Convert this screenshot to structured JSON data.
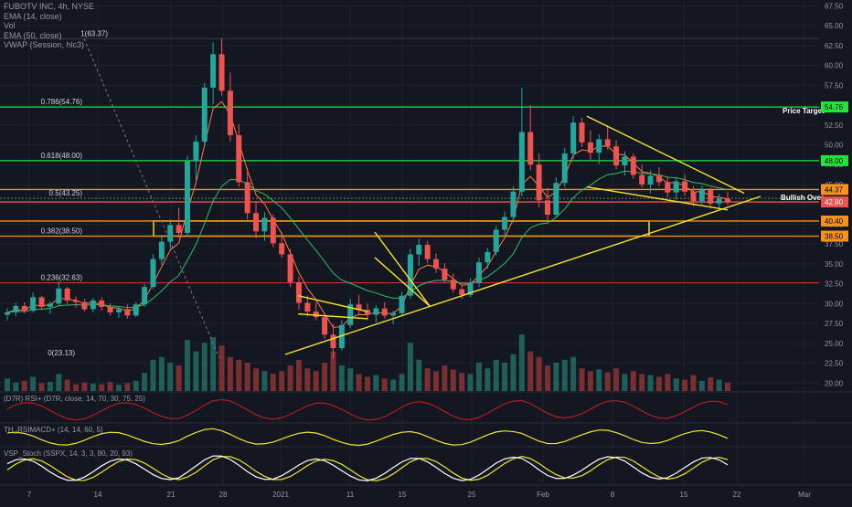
{
  "header": {
    "symbol_line": "FUBOTV INC, 4h, NYSE",
    "indicators": [
      "EMA (14, close)",
      "Vol",
      "EMA (50, close)",
      "VWAP (Session, hlc3)"
    ]
  },
  "colors": {
    "background": "#131722",
    "grid": "#1e222d",
    "up": "#26a69a",
    "down": "#ef5350",
    "trend": "#f5e425",
    "fib_green": "#21e53d",
    "fib_orange": "#f7931a",
    "fib_red": "#e0243b",
    "ema_fast": "#ff7a45",
    "ema_slow": "#2fbf5a",
    "axis_text": "#9598a1"
  },
  "annotations": {
    "price_target": "Price Target",
    "bullish_over": "Bullish Over"
  },
  "panes": {
    "rsi": "(D7R) RSI+ (D7R, close, 14, 70, 30, 75, 25)",
    "macd": "TH_RSIMACD+ (14, 14, 60, 5)",
    "stoch": "VSP_Stoch (SSPX, 14, 3, 3, 80, 20, 93)"
  },
  "chart_data": {
    "type": "candlestick",
    "title": "FUBOTV INC, 4h, NYSE",
    "x_ticks": [
      "7",
      "14",
      "21",
      "28",
      "2021",
      "11",
      "15",
      "25",
      "Feb",
      "8",
      "15",
      "22",
      "Mar"
    ],
    "y_ticks": [
      20.0,
      22.5,
      25.0,
      27.5,
      30.0,
      32.5,
      35.0,
      37.5,
      40.0,
      42.5,
      45.0,
      47.5,
      50.0,
      52.5,
      55.0,
      57.5,
      60.0,
      62.5,
      65.0,
      67.5
    ],
    "y_tick_labels": [
      "20.00",
      "22.50",
      "25.00",
      "27.50",
      "30.00",
      "32.50",
      "35.00",
      "37.50",
      "40.00",
      "42.50",
      "45.00",
      "47.50",
      "50.00",
      "52.50",
      "55.00",
      "57.50",
      "60.00",
      "62.50",
      "65.00",
      "67.50"
    ],
    "ylim": [
      19,
      68
    ],
    "fib_levels": [
      {
        "label": "1(63.37)",
        "value": 63.37,
        "color": "#9598a1"
      },
      {
        "label": "0.786(54.76)",
        "value": 54.76,
        "color": "#21e53d"
      },
      {
        "label": "0.618(48.00)",
        "value": 48.0,
        "color": "#21e53d"
      },
      {
        "label": "0.5(43.25)",
        "value": 43.25,
        "color": "#21e53d"
      },
      {
        "label": "0.382(38.50)",
        "value": 38.5,
        "color": "#f7931a"
      },
      {
        "label": "0.236(32.63)",
        "value": 32.63,
        "color": "#e0243b"
      },
      {
        "label": "0(23.13)",
        "value": 23.13,
        "color": "#9598a1"
      }
    ],
    "horizontal_lines": [
      {
        "value": 54.76,
        "label": "54.76",
        "color": "#21e53d"
      },
      {
        "value": 48.0,
        "label": "48.00",
        "color": "#21e53d"
      },
      {
        "value": 44.37,
        "label": "44.37",
        "color": "#f7931a"
      },
      {
        "value": 42.8,
        "label": "42.80",
        "color": "#ef5350"
      },
      {
        "value": 40.4,
        "label": "40.40",
        "color": "#f7931a"
      },
      {
        "value": 38.5,
        "label": "38.50",
        "color": "#f7931a"
      }
    ],
    "zone": {
      "from": 38.5,
      "to": 40.4
    },
    "ohlc": [
      [
        28.6,
        29.4,
        27.9,
        28.9
      ],
      [
        28.9,
        30.1,
        28.4,
        29.7
      ],
      [
        29.7,
        30.2,
        28.8,
        29.1
      ],
      [
        29.1,
        31.4,
        28.9,
        30.8
      ],
      [
        30.8,
        31.0,
        29.2,
        29.6
      ],
      [
        29.6,
        30.3,
        28.7,
        30.0
      ],
      [
        30.0,
        32.8,
        29.8,
        31.9
      ],
      [
        31.9,
        32.1,
        30.0,
        30.4
      ],
      [
        30.4,
        30.9,
        29.5,
        30.2
      ],
      [
        30.2,
        30.6,
        29.0,
        29.3
      ],
      [
        29.3,
        30.7,
        28.9,
        30.4
      ],
      [
        30.4,
        30.8,
        29.1,
        29.6
      ],
      [
        29.6,
        30.0,
        28.5,
        28.9
      ],
      [
        28.9,
        29.6,
        28.2,
        29.3
      ],
      [
        29.3,
        29.9,
        28.1,
        28.5
      ],
      [
        28.5,
        30.2,
        28.3,
        29.9
      ],
      [
        29.9,
        32.5,
        29.6,
        32.1
      ],
      [
        32.1,
        36.2,
        31.8,
        35.6
      ],
      [
        35.6,
        38.4,
        34.9,
        37.8
      ],
      [
        37.8,
        40.6,
        36.9,
        39.9
      ],
      [
        39.9,
        42.1,
        38.3,
        38.9
      ],
      [
        38.9,
        48.6,
        38.5,
        47.9
      ],
      [
        47.9,
        51.2,
        45.6,
        50.4
      ],
      [
        50.4,
        57.8,
        49.8,
        57.2
      ],
      [
        57.2,
        62.9,
        55.1,
        61.4
      ],
      [
        61.4,
        63.4,
        56.2,
        56.8
      ],
      [
        56.8,
        59.1,
        50.4,
        51.2
      ],
      [
        51.2,
        52.6,
        44.7,
        45.3
      ],
      [
        45.3,
        47.1,
        40.6,
        41.4
      ],
      [
        41.4,
        42.9,
        38.2,
        39.1
      ],
      [
        39.1,
        41.5,
        37.9,
        40.8
      ],
      [
        40.8,
        41.2,
        37.1,
        37.6
      ],
      [
        37.6,
        39.0,
        35.8,
        36.2
      ],
      [
        36.2,
        36.9,
        32.1,
        32.7
      ],
      [
        32.7,
        33.4,
        29.2,
        30.1
      ],
      [
        30.1,
        31.0,
        28.4,
        29.0
      ],
      [
        29.0,
        30.2,
        27.9,
        28.3
      ],
      [
        28.3,
        28.8,
        25.6,
        26.1
      ],
      [
        26.1,
        27.4,
        23.1,
        24.4
      ],
      [
        24.4,
        27.9,
        24.1,
        27.3
      ],
      [
        27.3,
        30.6,
        26.9,
        29.9
      ],
      [
        29.9,
        31.1,
        28.6,
        29.2
      ],
      [
        29.2,
        30.0,
        27.9,
        28.6
      ],
      [
        28.6,
        29.8,
        27.6,
        29.4
      ],
      [
        29.4,
        30.2,
        28.1,
        28.5
      ],
      [
        28.5,
        29.1,
        27.4,
        28.8
      ],
      [
        28.8,
        31.5,
        28.4,
        31.0
      ],
      [
        31.0,
        36.9,
        30.6,
        36.2
      ],
      [
        36.2,
        38.2,
        34.8,
        37.4
      ],
      [
        37.4,
        37.9,
        35.1,
        35.6
      ],
      [
        35.6,
        36.3,
        33.9,
        34.4
      ],
      [
        34.4,
        35.1,
        32.6,
        33.0
      ],
      [
        33.0,
        33.8,
        31.4,
        31.8
      ],
      [
        31.8,
        32.4,
        30.6,
        31.1
      ],
      [
        31.1,
        33.2,
        30.8,
        32.6
      ],
      [
        32.6,
        35.8,
        32.1,
        35.2
      ],
      [
        35.2,
        37.0,
        34.4,
        36.5
      ],
      [
        36.5,
        39.8,
        36.1,
        39.3
      ],
      [
        39.3,
        41.6,
        38.2,
        40.9
      ],
      [
        40.9,
        44.8,
        40.2,
        44.1
      ],
      [
        44.1,
        57.2,
        43.5,
        51.6
      ],
      [
        51.6,
        55.0,
        46.8,
        47.5
      ],
      [
        47.5,
        48.9,
        42.1,
        43.0
      ],
      [
        43.0,
        44.6,
        40.3,
        41.2
      ],
      [
        41.2,
        45.9,
        40.8,
        45.2
      ],
      [
        45.2,
        49.6,
        44.7,
        48.9
      ],
      [
        48.9,
        53.6,
        48.2,
        52.8
      ],
      [
        52.8,
        53.4,
        49.7,
        50.3
      ],
      [
        50.3,
        51.8,
        48.1,
        49.0
      ],
      [
        49.0,
        51.3,
        47.6,
        50.7
      ],
      [
        50.7,
        52.4,
        49.4,
        49.8
      ],
      [
        49.8,
        50.6,
        46.9,
        47.4
      ],
      [
        47.4,
        49.2,
        46.1,
        48.5
      ],
      [
        48.5,
        48.9,
        45.7,
        46.2
      ],
      [
        46.2,
        47.5,
        44.6,
        45.0
      ],
      [
        45.0,
        46.8,
        43.9,
        46.1
      ],
      [
        46.1,
        47.2,
        44.8,
        45.3
      ],
      [
        45.3,
        46.0,
        43.4,
        44.0
      ],
      [
        44.0,
        45.9,
        43.1,
        45.4
      ],
      [
        45.4,
        46.3,
        43.6,
        44.1
      ],
      [
        44.1,
        44.8,
        42.3,
        42.9
      ],
      [
        42.9,
        44.9,
        42.5,
        44.3
      ],
      [
        44.3,
        44.6,
        42.1,
        42.6
      ],
      [
        42.6,
        43.8,
        41.9,
        43.2
      ],
      [
        43.2,
        44.1,
        42.4,
        42.8
      ]
    ],
    "volume": [
      0.22,
      0.15,
      0.18,
      0.25,
      0.14,
      0.16,
      0.3,
      0.2,
      0.12,
      0.15,
      0.13,
      0.12,
      0.16,
      0.11,
      0.14,
      0.18,
      0.32,
      0.55,
      0.6,
      0.5,
      0.45,
      0.9,
      0.7,
      0.85,
      0.95,
      0.8,
      0.6,
      0.55,
      0.5,
      0.4,
      0.35,
      0.3,
      0.35,
      0.45,
      0.55,
      0.4,
      0.35,
      0.5,
      0.7,
      0.45,
      0.4,
      0.3,
      0.25,
      0.28,
      0.22,
      0.2,
      0.3,
      0.85,
      0.55,
      0.4,
      0.35,
      0.45,
      0.38,
      0.32,
      0.3,
      0.5,
      0.4,
      0.55,
      0.5,
      0.65,
      1.0,
      0.7,
      0.6,
      0.45,
      0.5,
      0.55,
      0.6,
      0.4,
      0.35,
      0.38,
      0.33,
      0.4,
      0.3,
      0.35,
      0.3,
      0.28,
      0.25,
      0.3,
      0.22,
      0.2,
      0.28,
      0.18,
      0.24,
      0.2,
      0.15
    ]
  }
}
